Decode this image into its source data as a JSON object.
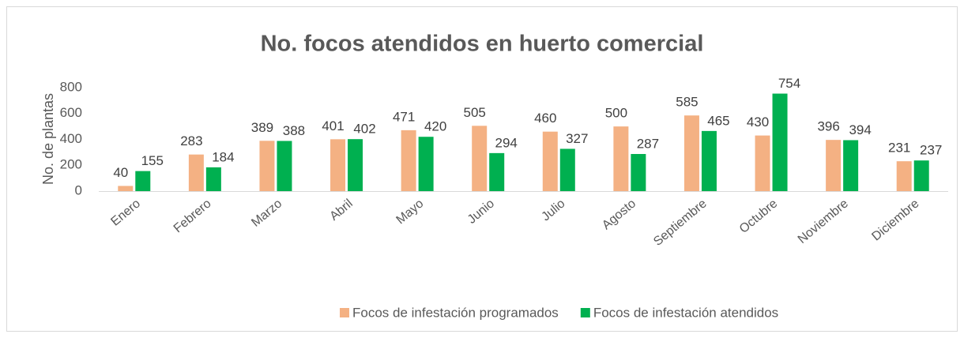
{
  "chart_data": {
    "type": "bar",
    "title": "No. focos atendidos en huerto comercial",
    "y_label": "No. de plantas",
    "categories": [
      "Enero",
      "Febrero",
      "Marzo",
      "Abril",
      "Mayo",
      "Junio",
      "Julio",
      "Agosto",
      "Septiembre",
      "Octubre",
      "Noviembre",
      "Diciembre"
    ],
    "series": [
      {
        "name": "Focos de infestación programados",
        "color": "#f4b183",
        "values": [
          40,
          283,
          389,
          401,
          471,
          505,
          460,
          500,
          585,
          430,
          396,
          231
        ]
      },
      {
        "name": "Focos de infestación atendidos",
        "color": "#00b050",
        "values": [
          155,
          184,
          388,
          402,
          420,
          294,
          327,
          287,
          465,
          754,
          394,
          237
        ]
      }
    ],
    "ylim": [
      0,
      800
    ],
    "yticks": [
      0,
      200,
      400,
      600,
      800
    ],
    "grid": false,
    "legend": "bottom"
  }
}
